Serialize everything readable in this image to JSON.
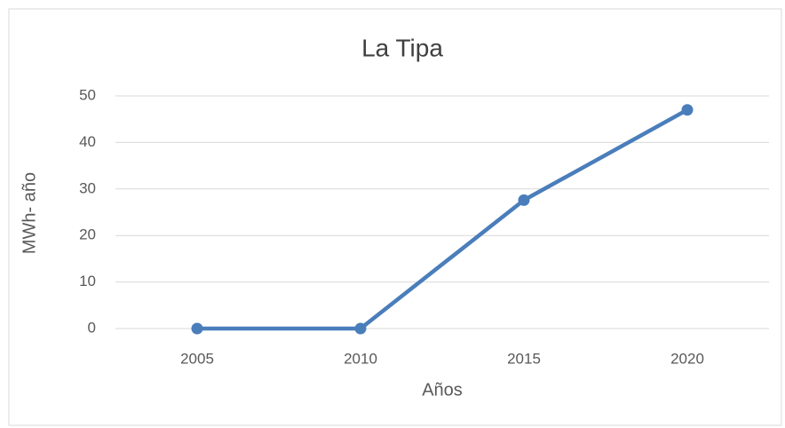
{
  "chart_data": {
    "type": "line",
    "title": "La Tipa",
    "xlabel": "Años",
    "ylabel": "MWh- año",
    "categories": [
      "2005",
      "2010",
      "2015",
      "2020"
    ],
    "series": [
      {
        "name": "La Tipa",
        "color": "#4a7ebb",
        "values": [
          0,
          0,
          27.6,
          47
        ]
      }
    ],
    "ylim": [
      0,
      50
    ],
    "yticks": [
      0,
      10,
      20,
      30,
      40,
      50
    ],
    "grid": true
  }
}
